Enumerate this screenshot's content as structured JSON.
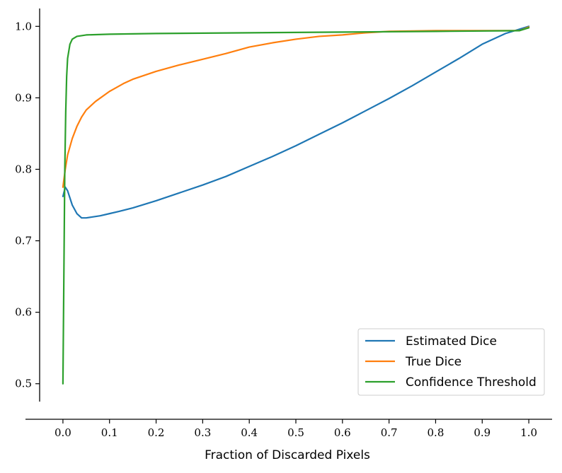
{
  "chart_data": {
    "type": "line",
    "title": "",
    "xlabel": "Fraction of Discarded Pixels",
    "ylabel": "",
    "xlim": [
      -0.05,
      1.05
    ],
    "ylim": [
      0.475,
      1.025
    ],
    "x_ticks": [
      "0.0",
      "0.1",
      "0.2",
      "0.3",
      "0.4",
      "0.5",
      "0.6",
      "0.7",
      "0.8",
      "0.9",
      "1.0"
    ],
    "y_ticks": [
      "0.5",
      "0.6",
      "0.7",
      "0.8",
      "0.9",
      "1.0"
    ],
    "grid": false,
    "legend_position": "bottom-right",
    "series": [
      {
        "name": "Estimated Dice",
        "color": "#1f77b4",
        "points": [
          [
            0.0,
            0.762
          ],
          [
            0.005,
            0.775
          ],
          [
            0.01,
            0.77
          ],
          [
            0.02,
            0.75
          ],
          [
            0.03,
            0.738
          ],
          [
            0.04,
            0.732
          ],
          [
            0.05,
            0.732
          ],
          [
            0.06,
            0.733
          ],
          [
            0.08,
            0.735
          ],
          [
            0.1,
            0.738
          ],
          [
            0.12,
            0.741
          ],
          [
            0.15,
            0.746
          ],
          [
            0.2,
            0.756
          ],
          [
            0.25,
            0.767
          ],
          [
            0.3,
            0.778
          ],
          [
            0.35,
            0.79
          ],
          [
            0.4,
            0.804
          ],
          [
            0.45,
            0.818
          ],
          [
            0.5,
            0.833
          ],
          [
            0.55,
            0.849
          ],
          [
            0.6,
            0.865
          ],
          [
            0.65,
            0.882
          ],
          [
            0.7,
            0.899
          ],
          [
            0.75,
            0.917
          ],
          [
            0.8,
            0.936
          ],
          [
            0.85,
            0.955
          ],
          [
            0.9,
            0.975
          ],
          [
            0.95,
            0.99
          ],
          [
            0.99,
            0.998
          ],
          [
            1.0,
            1.0
          ]
        ]
      },
      {
        "name": "True Dice",
        "color": "#ff7f0e",
        "points": [
          [
            0.0,
            0.775
          ],
          [
            0.005,
            0.8
          ],
          [
            0.01,
            0.82
          ],
          [
            0.02,
            0.843
          ],
          [
            0.03,
            0.86
          ],
          [
            0.04,
            0.873
          ],
          [
            0.05,
            0.883
          ],
          [
            0.07,
            0.895
          ],
          [
            0.1,
            0.909
          ],
          [
            0.13,
            0.92
          ],
          [
            0.15,
            0.926
          ],
          [
            0.2,
            0.937
          ],
          [
            0.25,
            0.946
          ],
          [
            0.3,
            0.954
          ],
          [
            0.35,
            0.962
          ],
          [
            0.4,
            0.971
          ],
          [
            0.45,
            0.977
          ],
          [
            0.5,
            0.982
          ],
          [
            0.55,
            0.986
          ],
          [
            0.6,
            0.988
          ],
          [
            0.65,
            0.991
          ],
          [
            0.7,
            0.993
          ],
          [
            0.8,
            0.994
          ],
          [
            0.9,
            0.994
          ],
          [
            0.98,
            0.994
          ],
          [
            1.0,
            0.999
          ]
        ]
      },
      {
        "name": "Confidence Threshold",
        "color": "#2ca02c",
        "points": [
          [
            0.0,
            0.5
          ],
          [
            0.002,
            0.65
          ],
          [
            0.004,
            0.8
          ],
          [
            0.006,
            0.88
          ],
          [
            0.008,
            0.93
          ],
          [
            0.01,
            0.955
          ],
          [
            0.015,
            0.975
          ],
          [
            0.02,
            0.982
          ],
          [
            0.03,
            0.986
          ],
          [
            0.05,
            0.988
          ],
          [
            0.1,
            0.989
          ],
          [
            0.2,
            0.99
          ],
          [
            0.4,
            0.991
          ],
          [
            0.6,
            0.992
          ],
          [
            0.8,
            0.993
          ],
          [
            0.98,
            0.994
          ],
          [
            1.0,
            0.998
          ]
        ]
      }
    ]
  }
}
